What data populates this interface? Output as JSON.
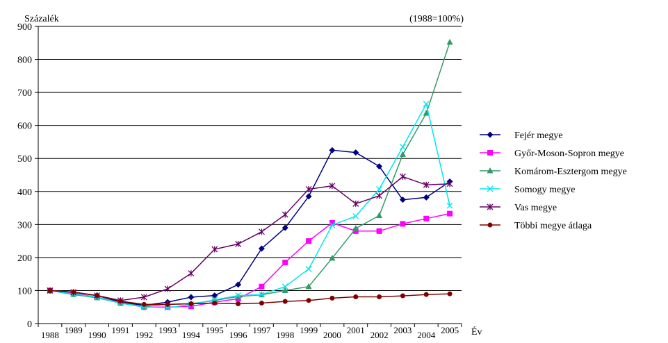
{
  "chart_data": {
    "type": "line",
    "ylabel": "Százalék",
    "subtitle": "(1988=100%)",
    "xlabel": "Év",
    "ylim": [
      0,
      900
    ],
    "yticks": [
      0,
      100,
      200,
      300,
      400,
      500,
      600,
      700,
      800,
      900
    ],
    "grid": "horizontal",
    "legend_position": "right",
    "categories": [
      "1988",
      "1989",
      "1990",
      "1991",
      "1992",
      "1993",
      "1994",
      "1995",
      "1996",
      "1997",
      "1998",
      "1999",
      "2000",
      "2001",
      "2002",
      "2003",
      "2004",
      "2005"
    ],
    "series": [
      {
        "name": "Fejér megye",
        "color": "#000080",
        "marker": "diamond",
        "values": [
          100,
          95,
          85,
          65,
          55,
          65,
          80,
          85,
          118,
          227,
          290,
          385,
          525,
          518,
          476,
          375,
          382,
          430
        ]
      },
      {
        "name": "Győr-Moson-Sopron megye",
        "color": "#ff00ff",
        "marker": "square",
        "values": [
          100,
          92,
          80,
          62,
          50,
          50,
          52,
          65,
          75,
          112,
          185,
          250,
          305,
          280,
          280,
          302,
          318,
          333
        ]
      },
      {
        "name": "Komárom-Esztergom megye",
        "color": "#339966",
        "marker": "triangle",
        "values": [
          100,
          88,
          78,
          62,
          52,
          58,
          60,
          70,
          82,
          87,
          100,
          112,
          198,
          288,
          327,
          512,
          637,
          852
        ]
      },
      {
        "name": "Somogy megye",
        "color": "#00e5ee",
        "marker": "x",
        "values": [
          100,
          90,
          80,
          62,
          50,
          48,
          58,
          72,
          85,
          88,
          112,
          165,
          298,
          325,
          407,
          535,
          665,
          357
        ]
      },
      {
        "name": "Vas megye",
        "color": "#660066",
        "marker": "star",
        "values": [
          100,
          95,
          85,
          70,
          80,
          105,
          152,
          225,
          241,
          278,
          330,
          407,
          417,
          363,
          387,
          445,
          420,
          423
        ]
      },
      {
        "name": "Többi megye átlaga",
        "color": "#800000",
        "marker": "circle",
        "values": [
          100,
          95,
          85,
          68,
          58,
          58,
          60,
          62,
          60,
          62,
          67,
          70,
          77,
          81,
          81,
          84,
          88,
          90
        ]
      }
    ]
  }
}
